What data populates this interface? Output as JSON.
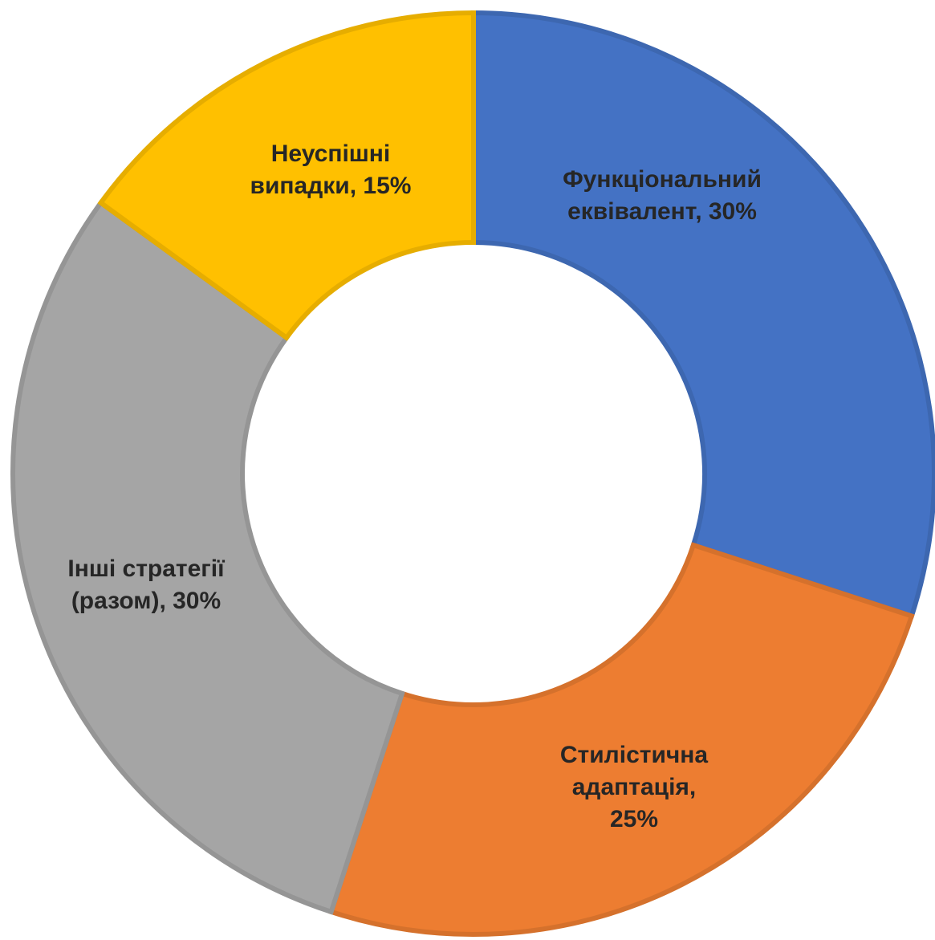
{
  "chart_data": {
    "type": "donut",
    "values": [
      30,
      25,
      30,
      15
    ],
    "value_labels": [
      [
        "Функціональний",
        "еквівалент, 30%"
      ],
      [
        "Стилістична",
        "адаптація,",
        "25%"
      ],
      [
        "Інші стратегії",
        "(разом), 30%"
      ],
      [
        "Неуспішні",
        "випадки, 15%"
      ]
    ],
    "colors": [
      "#4472c4",
      "#ed7d31",
      "#a5a5a5",
      "#ffc000"
    ]
  }
}
